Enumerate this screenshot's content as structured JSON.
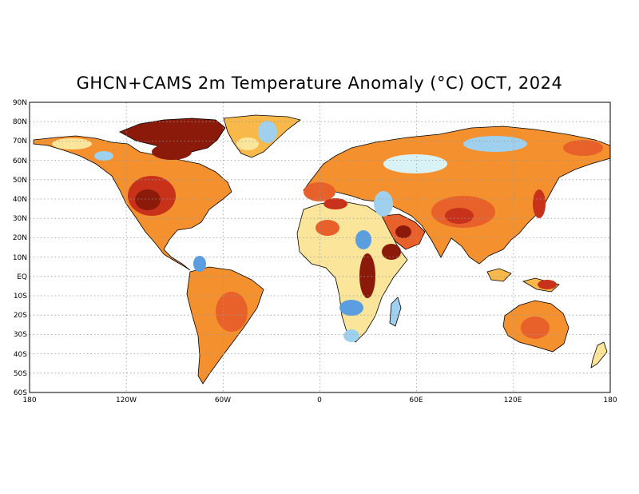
{
  "title": "GHCN+CAMS 2m Temperature Anomaly (°C) OCT, 2024",
  "axes": {
    "lat_labels": [
      "90N",
      "80N",
      "70N",
      "60N",
      "50N",
      "40N",
      "30N",
      "20N",
      "10N",
      "EQ",
      "10S",
      "20S",
      "30S",
      "40S",
      "50S",
      "60S"
    ],
    "lon_labels": [
      "180",
      "120W",
      "60W",
      "0",
      "60E",
      "120E",
      "180"
    ]
  },
  "colors": {
    "dark_red": "#8b1a0a",
    "red": "#c8321a",
    "orange_red": "#e8602a",
    "orange": "#f4902e",
    "light_orange": "#f8b84a",
    "yellow": "#fbe59a",
    "pale_cyan": "#d8f2f6",
    "light_blue": "#9fd0ee",
    "blue": "#5a9ee0",
    "coast": "#000000",
    "grid": "#9a9a9a"
  }
}
